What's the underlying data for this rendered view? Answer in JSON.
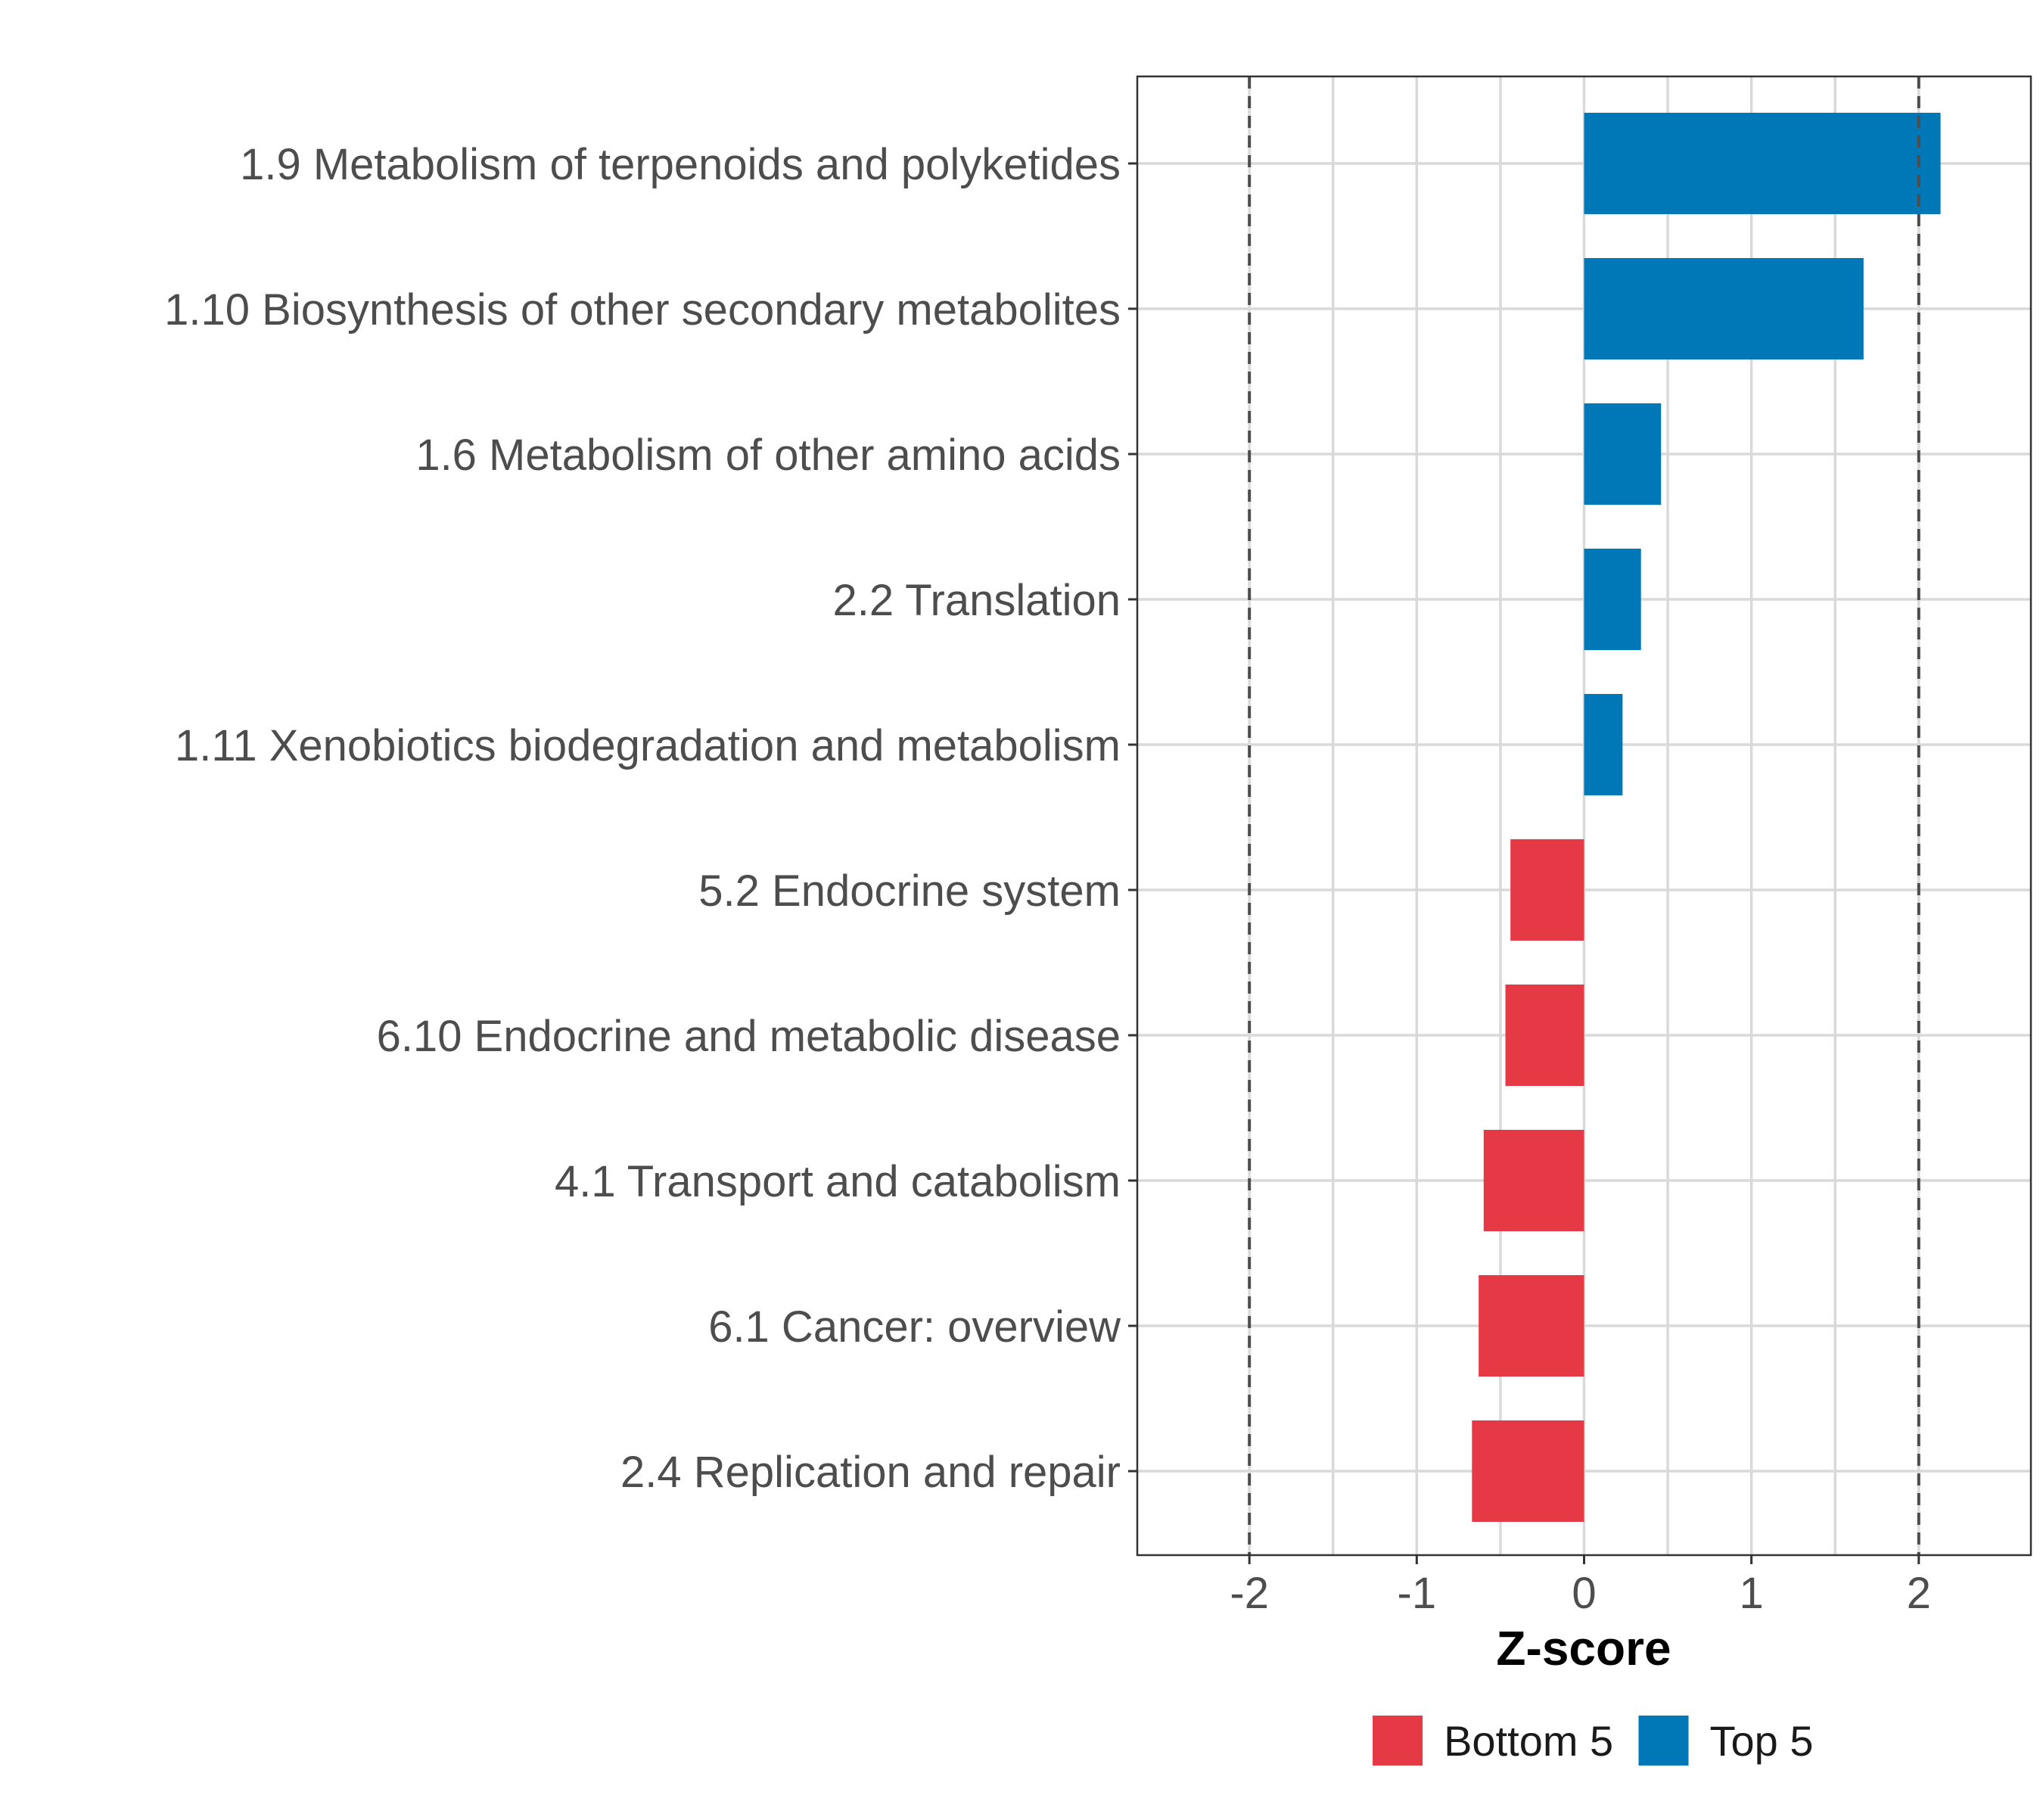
{
  "chart_data": {
    "type": "bar",
    "orientation": "horizontal",
    "title": "",
    "xlabel": "Z-score",
    "ylabel": "",
    "xlim": [
      -2.67,
      2.67
    ],
    "xticks": [
      -2,
      -1,
      0,
      1,
      2
    ],
    "xtick_labels": [
      "-2",
      "-1",
      "0",
      "1",
      "2"
    ],
    "reference_lines": [
      -2,
      2
    ],
    "grid": true,
    "legend_position": "bottom",
    "categories": [
      "1.9 Metabolism of terpenoids and polyketides",
      "1.10 Biosynthesis of other secondary metabolites",
      "1.6 Metabolism of other amino acids",
      "2.2 Translation",
      "1.11 Xenobiotics biodegradation and metabolism",
      "5.2 Endocrine system",
      "6.10 Endocrine and metabolic disease",
      "4.1 Transport and catabolism",
      "6.1 Cancer: overview",
      "2.4 Replication and repair"
    ],
    "values": [
      2.13,
      1.67,
      0.46,
      0.34,
      0.23,
      -0.44,
      -0.47,
      -0.6,
      -0.63,
      -0.67
    ],
    "groups": [
      "Top 5",
      "Top 5",
      "Top 5",
      "Top 5",
      "Top 5",
      "Bottom 5",
      "Bottom 5",
      "Bottom 5",
      "Bottom 5",
      "Bottom 5"
    ],
    "legend": [
      {
        "name": "Bottom 5",
        "color": "#E63946"
      },
      {
        "name": "Top 5",
        "color": "#0077B6"
      }
    ]
  },
  "colors": {
    "Top 5": "#0077B6",
    "Bottom 5": "#E63946",
    "grid": "#D9D9D9",
    "text": "#4D4D4D",
    "axis_title": "#000000",
    "ref_line": "#4D4D4D"
  }
}
